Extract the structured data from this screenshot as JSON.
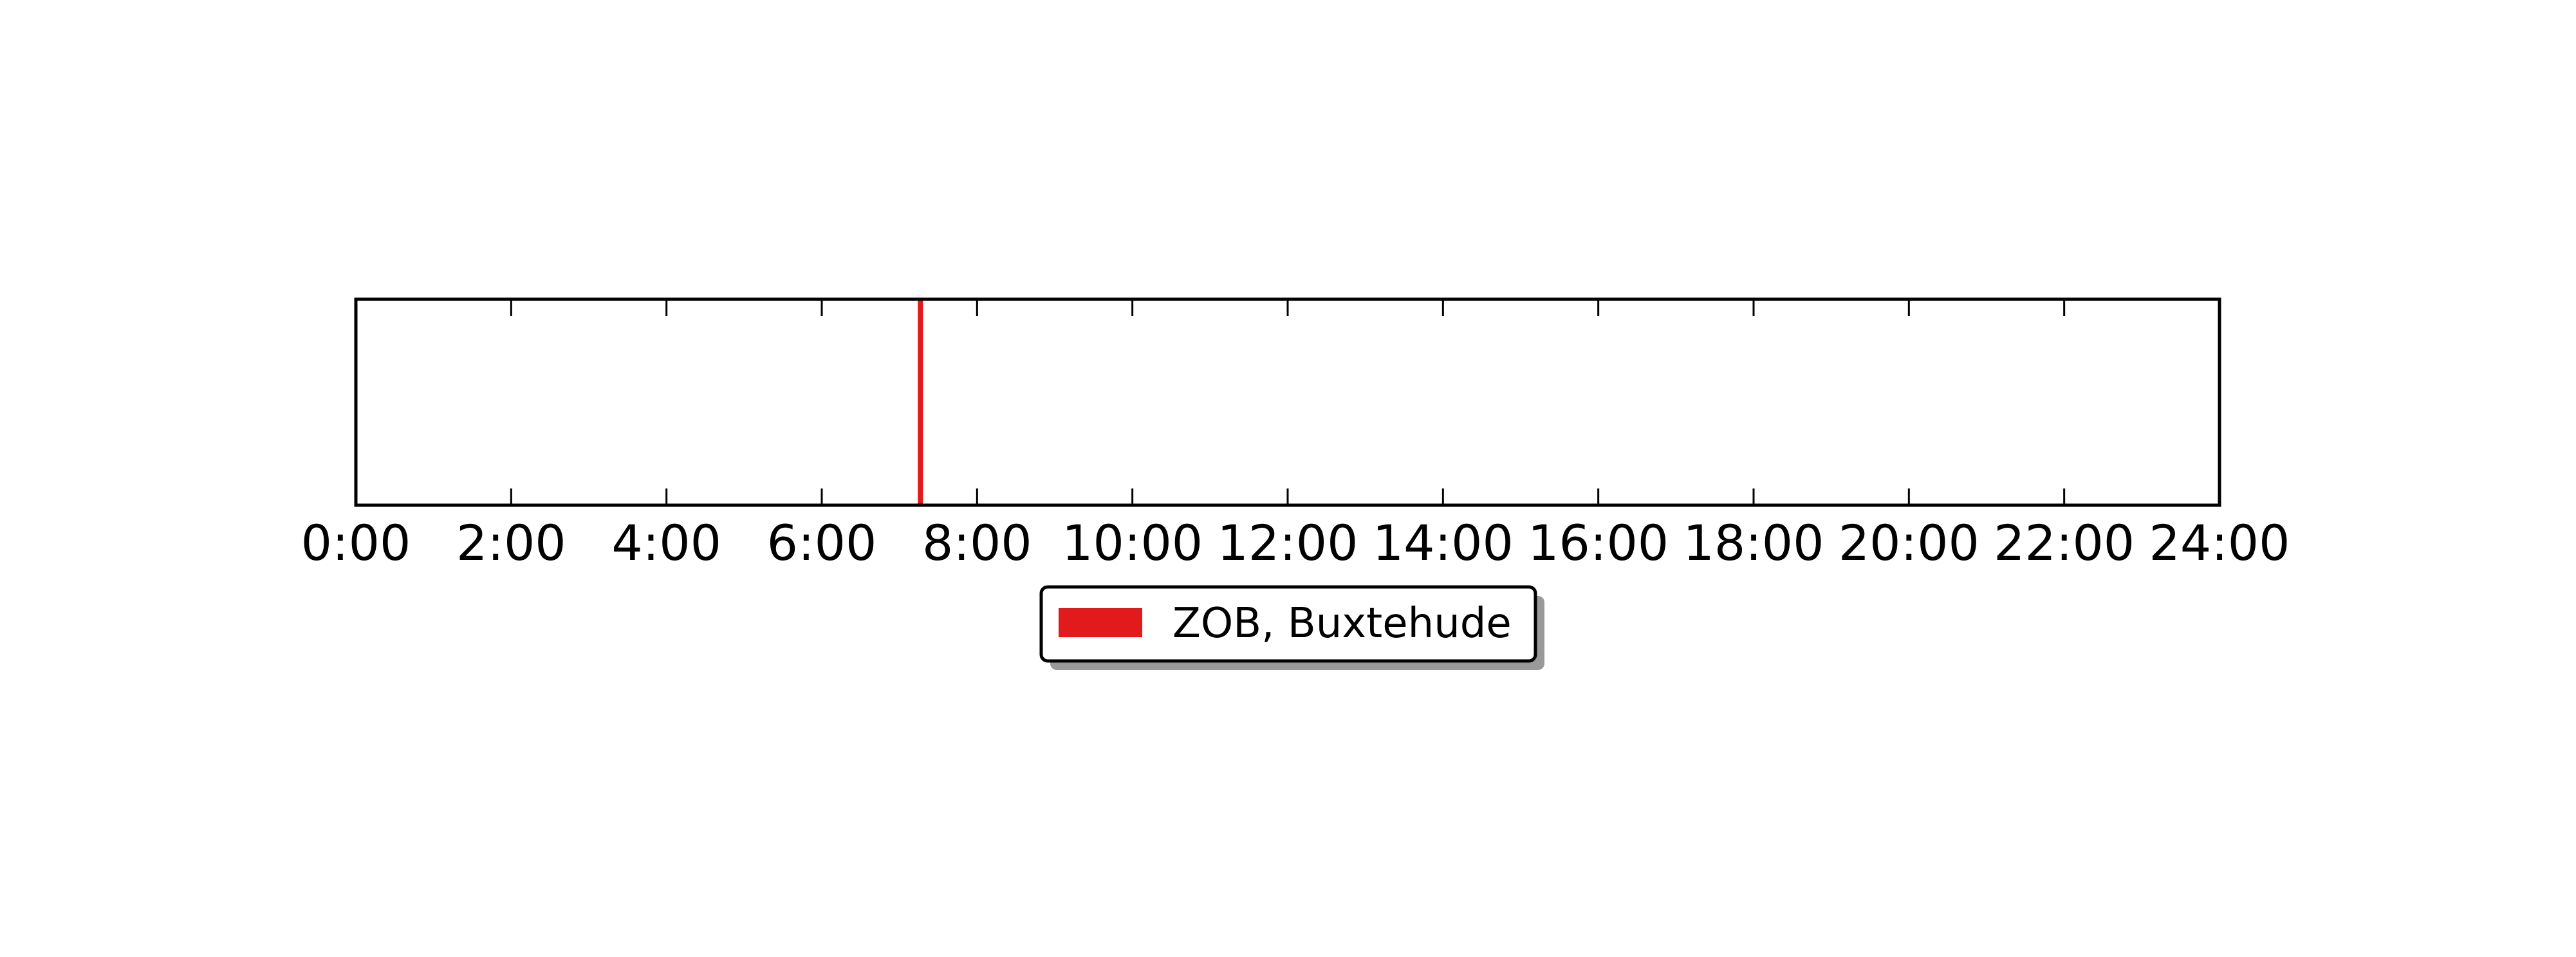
{
  "chart_data": {
    "type": "timeline",
    "title": "",
    "xlabel": "",
    "ylabel": "",
    "xlim": [
      0,
      24
    ],
    "x_ticks": [
      0,
      2,
      4,
      6,
      8,
      10,
      12,
      14,
      16,
      18,
      20,
      22,
      24
    ],
    "x_tick_labels": [
      "0:00",
      "2:00",
      "4:00",
      "6:00",
      "8:00",
      "10:00",
      "12:00",
      "14:00",
      "16:00",
      "18:00",
      "20:00",
      "22:00",
      "24:00"
    ],
    "grid": false,
    "legend_position": "bottom-center",
    "series": [
      {
        "name": "ZOB, Buxtehude",
        "color": "#e31a1c",
        "events": [
          7.27
        ]
      }
    ]
  }
}
